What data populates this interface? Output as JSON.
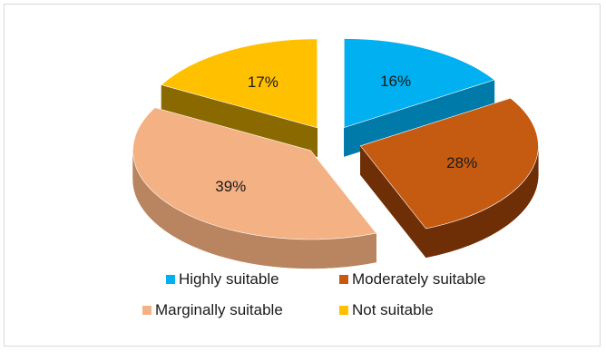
{
  "chart_data": {
    "type": "pie",
    "style": "3d-exploded",
    "slices": [
      {
        "label": "Highly suitable",
        "value": 16,
        "display": "16%",
        "color": "#00b0f0",
        "side_color": "#007aa8"
      },
      {
        "label": "Moderately suitable",
        "value": 28,
        "display": "28%",
        "color": "#c55a11",
        "side_color": "#6e2f07"
      },
      {
        "label": "Marginally suitable",
        "value": 39,
        "display": "39%",
        "color": "#f4b183",
        "side_color": "#b98560"
      },
      {
        "label": "Not suitable",
        "value": 17,
        "display": "17%",
        "color": "#ffc000",
        "side_color": "#8a6a00"
      }
    ],
    "legend_position": "bottom"
  }
}
